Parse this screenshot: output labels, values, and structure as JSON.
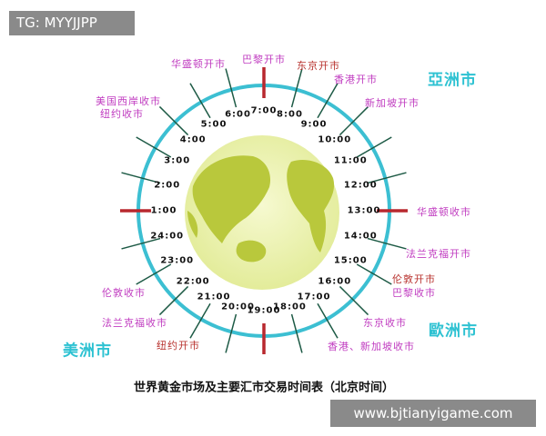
{
  "watermark_top": "TG: MYYJJPP",
  "watermark_bottom": "www.bjtianyigame.com",
  "title": "世界黄金市场及主要汇市交易时间表（北京时间）",
  "regions": {
    "asia": "亞洲市",
    "europe": "歐洲市",
    "america": "美洲市"
  },
  "times": [
    "1:00",
    "2:00",
    "3:00",
    "4:00",
    "5:00",
    "6:00",
    "7:00",
    "8:00",
    "9:00",
    "10:00",
    "11:00",
    "12:00",
    "13:00",
    "14:00",
    "15:00",
    "16:00",
    "17:00",
    "18:00",
    "19:00",
    "20:00",
    "21:00",
    "22:00",
    "23:00",
    "24:00"
  ],
  "major_times": [
    "1:00",
    "7:00",
    "13:00",
    "19:00"
  ],
  "events": {
    "washington_open": "华盛顿开市",
    "paris_open": "巴黎开市",
    "tokyo_open": "东京开市",
    "hongkong_open": "香港开市",
    "singapore_open": "新加坡开市",
    "us_west_close": "美国西岸收市",
    "newyork_close": "纽约收市",
    "washington_close": "华盛顿收市",
    "frankfurt_open": "法兰克福开市",
    "london_open": "伦敦开市",
    "paris_close": "巴黎收市",
    "london_close": "伦敦收市",
    "frankfurt_close": "法兰克福收市",
    "newyork_open": "纽约开市",
    "tokyo_close": "东京收市",
    "hk_sg_close": "香港、新加坡收市"
  },
  "colors": {
    "ring": "#3cbfd2",
    "tick": "#1d5a45",
    "major_tick": "#b8282e",
    "event": "#c03cc0",
    "event_highlight": "#b8322e",
    "region": "#2ec2d2",
    "globe": "#eef3b0",
    "land": "#b9c83c"
  }
}
